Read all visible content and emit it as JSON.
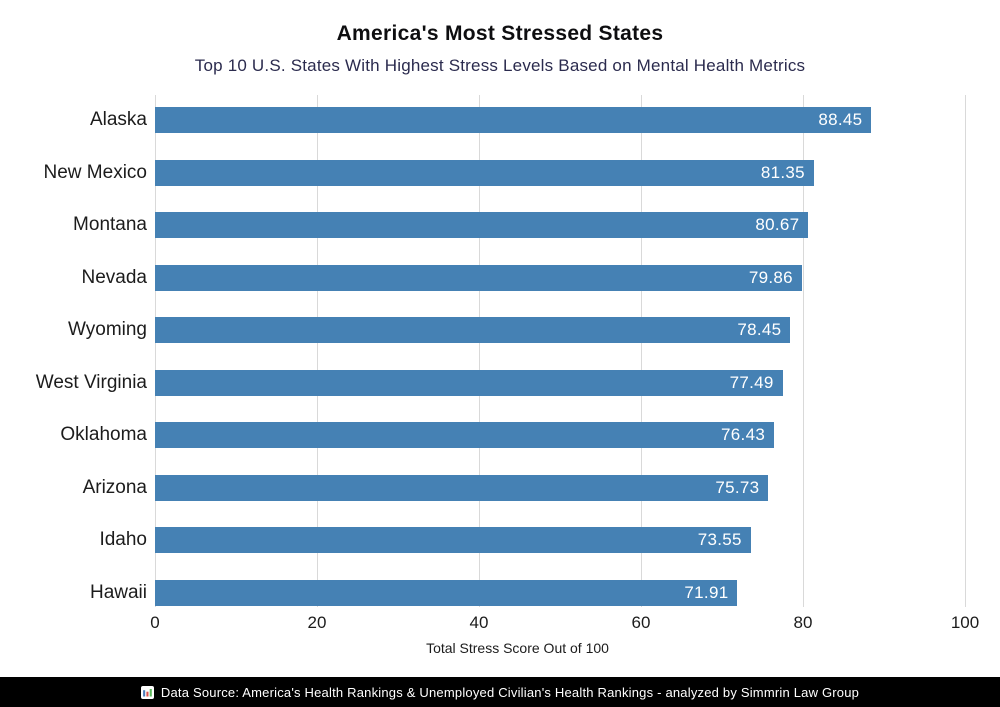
{
  "header": {
    "title": "America's Most Stressed States",
    "subtitle": "Top 10 U.S. States With Highest Stress Levels Based on Mental Health Metrics"
  },
  "chart_data": {
    "type": "bar",
    "orientation": "horizontal",
    "title": "America's Most Stressed States",
    "subtitle": "Top 10 U.S. States With Highest Stress Levels Based on Mental Health Metrics",
    "categories": [
      "Alaska",
      "New Mexico",
      "Montana",
      "Nevada",
      "Wyoming",
      "West Virginia",
      "Oklahoma",
      "Arizona",
      "Idaho",
      "Hawaii"
    ],
    "values": [
      88.45,
      81.35,
      80.67,
      79.86,
      78.45,
      77.49,
      76.43,
      75.73,
      73.55,
      71.91
    ],
    "xlabel": "Total Stress Score Out of 100",
    "ylabel": "",
    "xlim": [
      0,
      100
    ],
    "xticks": [
      0,
      20,
      40,
      60,
      80,
      100
    ],
    "grid": "vertical",
    "legend": "none",
    "bar_color": "#4581b4",
    "gridline_color": "#d9d9d9",
    "value_label_color": "#ffffff"
  },
  "footer": {
    "icon": "bar-chart-emoji",
    "text": "Data Source: America's Health Rankings & Unemployed Civilian's Health Rankings - analyzed by Simmrin Law Group"
  }
}
